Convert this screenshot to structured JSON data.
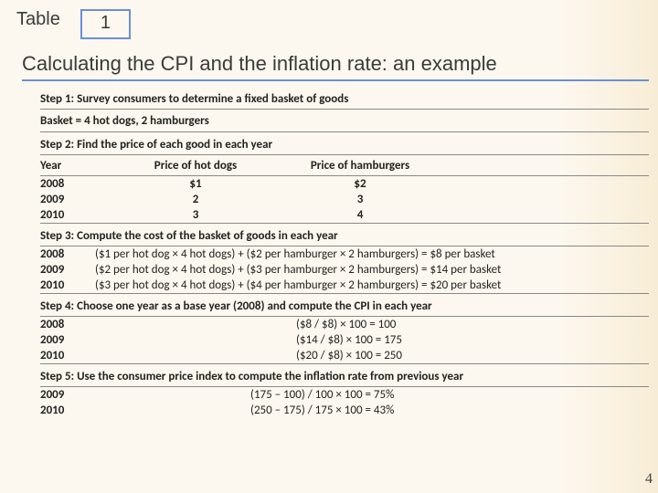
{
  "header": {
    "tableLabel": "Table",
    "tableNumber": "1"
  },
  "title": "Calculating the CPI and the inflation rate: an example",
  "step1": "Step 1: Survey consumers to determine a fixed basket of goods",
  "basket": "Basket = 4 hot dogs, 2 hamburgers",
  "step2": "Step 2: Find the price of each good in each year",
  "priceHeaders": {
    "year": "Year",
    "col2": "Price of hot dogs",
    "col3": "Price of hamburgers"
  },
  "prices": [
    {
      "year": "2008",
      "hotdog": "$1",
      "hamburger": "$2"
    },
    {
      "year": "2009",
      "hotdog": "2",
      "hamburger": "3"
    },
    {
      "year": "2010",
      "hotdog": "3",
      "hamburger": "4"
    }
  ],
  "step3": "Step 3: Compute the cost of the basket of goods in each year",
  "costs": [
    {
      "year": "2008",
      "calc": "($1 per hot dog × 4 hot dogs) + ($2 per hamburger × 2 hamburgers) = $8 per basket"
    },
    {
      "year": "2009",
      "calc": "($2 per hot dog × 4 hot dogs) + ($3 per hamburger × 2 hamburgers) = $14 per basket"
    },
    {
      "year": "2010",
      "calc": "($3 per hot dog × 4 hot dogs) + ($4 per hamburger × 2 hamburgers) = $20 per basket"
    }
  ],
  "step4": "Step 4: Choose one year as a base year (2008) and compute the CPI in each year",
  "cpi": [
    {
      "year": "2008",
      "calc": "($8 / $8) × 100 = 100"
    },
    {
      "year": "2009",
      "calc": "($14 / $8) × 100 = 175"
    },
    {
      "year": "2010",
      "calc": "($20 / $8) × 100 = 250"
    }
  ],
  "step5": "Step 5: Use the consumer price index to compute the inflation rate from previous year",
  "inflation": [
    {
      "year": "2009",
      "calc": "(175 – 100) / 100 × 100 = 75%"
    },
    {
      "year": "2010",
      "calc": "(250 – 175) / 175 × 100 = 43%"
    }
  ],
  "pageNumber": "4",
  "styling": {
    "background_gradient": [
      "#fdf8ef",
      "#f7ecd5"
    ],
    "accent_border": "#6b8fd4",
    "title_fontsize": 22,
    "body_fontsize": 13,
    "separator_color": "#888888"
  }
}
